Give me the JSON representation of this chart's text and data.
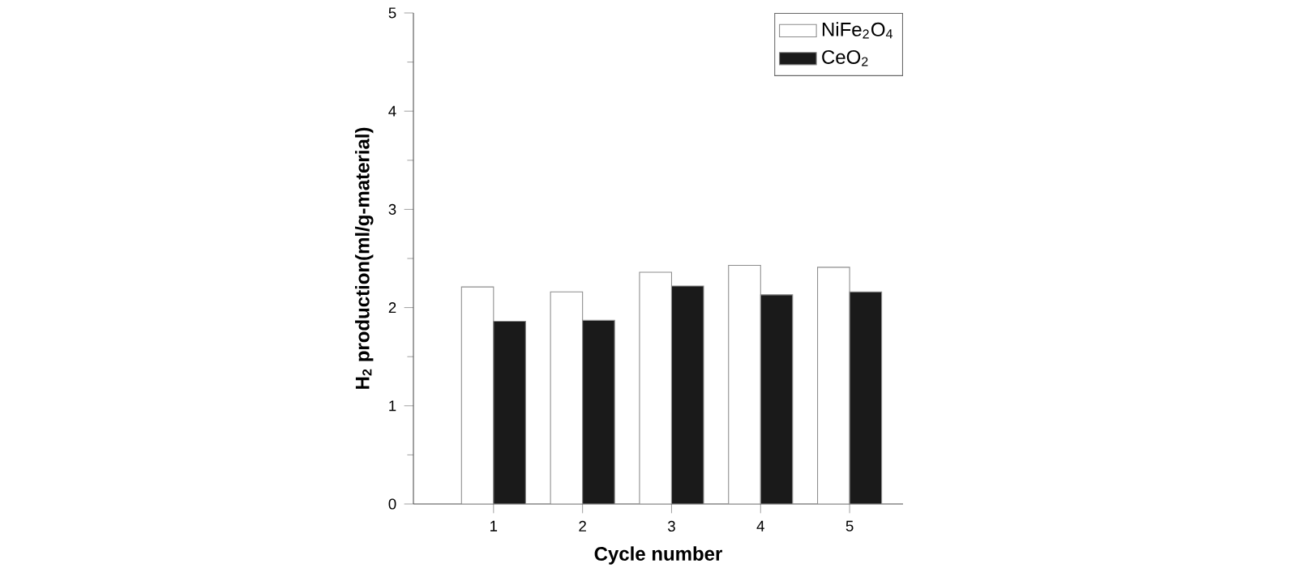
{
  "chart_data": {
    "type": "bar",
    "xlabel": "Cycle number",
    "ylabel": "H$_{2}$ production(ml/g-material)",
    "categories": [
      "1",
      "2",
      "3",
      "4",
      "5"
    ],
    "series": [
      {
        "name": "NiFe$_{2}$O$_{4}$",
        "color": "#ffffff",
        "values": [
          2.21,
          2.16,
          2.36,
          2.43,
          2.41
        ]
      },
      {
        "name": "CeO$_{2}$",
        "color": "#1a1a1a",
        "values": [
          1.86,
          1.87,
          2.22,
          2.13,
          2.16
        ]
      }
    ],
    "ylim": [
      0,
      5
    ],
    "yticks": [
      0,
      1,
      2,
      3,
      4,
      5
    ],
    "legend": "top right",
    "grid": false
  }
}
